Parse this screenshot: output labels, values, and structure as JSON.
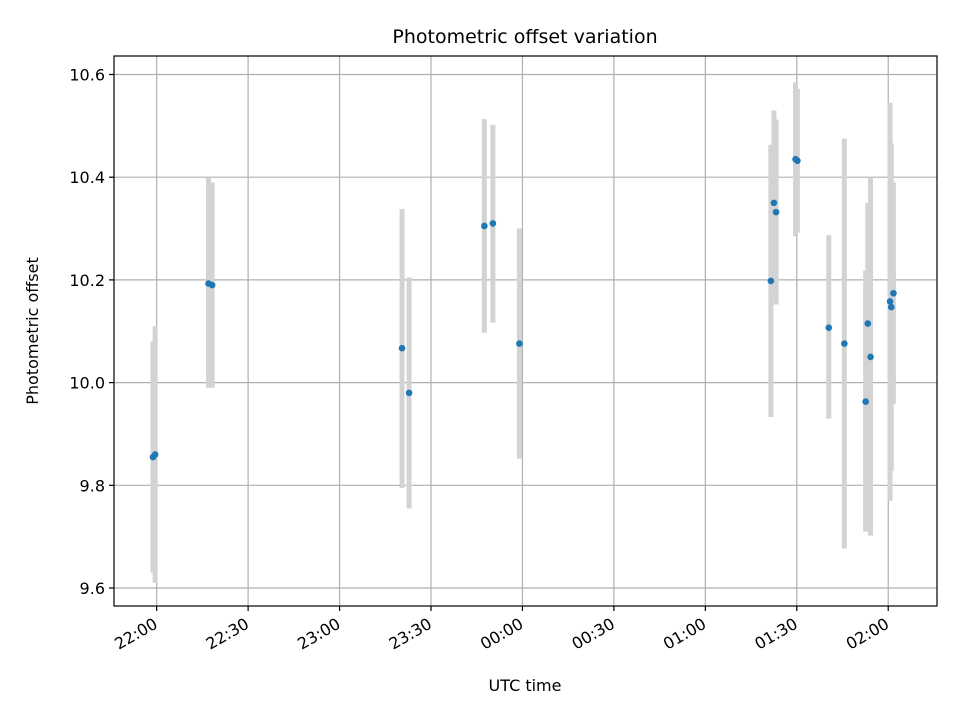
{
  "chart_data": {
    "type": "scatter",
    "title": "Photometric offset variation",
    "xlabel": "UTC time",
    "ylabel": "Photometric offset",
    "x_unit": "UTC time of day (times after midnight written past 24:00)",
    "xlim": [
      "21:46",
      "26:16"
    ],
    "ylim": [
      9.565,
      10.636
    ],
    "xticks": [
      "22:00",
      "22:30",
      "23:00",
      "23:30",
      "24:00",
      "24:30",
      "25:00",
      "25:30",
      "26:00"
    ],
    "xtick_labels": [
      "22:00",
      "22:30",
      "23:00",
      "23:30",
      "00:00",
      "00:30",
      "01:00",
      "01:30",
      "02:00"
    ],
    "yticks": [
      9.6,
      9.8,
      10.0,
      10.2,
      10.4,
      10.6
    ],
    "ytick_labels": [
      "9.6",
      "9.8",
      "10.0",
      "10.2",
      "10.4",
      "10.6"
    ],
    "grid": true,
    "colors": {
      "points": "#1f77b4",
      "errorbars": "#d3d3d3",
      "grid": "#b0b0b0"
    },
    "points": [
      {
        "x": "21:58.8",
        "y": 9.855,
        "low": 9.63,
        "high": 10.08
      },
      {
        "x": "21:59.5",
        "y": 9.86,
        "low": 9.61,
        "high": 10.11
      },
      {
        "x": "22:17.0",
        "y": 10.193,
        "low": 9.99,
        "high": 10.4
      },
      {
        "x": "22:18.2",
        "y": 10.19,
        "low": 9.99,
        "high": 10.39
      },
      {
        "x": "23:20.5",
        "y": 10.067,
        "low": 9.795,
        "high": 10.338
      },
      {
        "x": "23:22.8",
        "y": 9.98,
        "low": 9.755,
        "high": 10.205
      },
      {
        "x": "23:47.5",
        "y": 10.305,
        "low": 10.097,
        "high": 10.513
      },
      {
        "x": "23:50.3",
        "y": 10.31,
        "low": 10.117,
        "high": 10.502
      },
      {
        "x": "23:59.0",
        "y": 10.076,
        "low": 9.852,
        "high": 10.3
      },
      {
        "x": "25:21.5",
        "y": 10.198,
        "low": 9.933,
        "high": 10.463
      },
      {
        "x": "25:22.5",
        "y": 10.35,
        "low": 10.17,
        "high": 10.53
      },
      {
        "x": "25:23.2",
        "y": 10.332,
        "low": 10.152,
        "high": 10.512
      },
      {
        "x": "25:29.6",
        "y": 10.435,
        "low": 10.285,
        "high": 10.585
      },
      {
        "x": "25:30.2",
        "y": 10.432,
        "low": 10.292,
        "high": 10.572
      },
      {
        "x": "25:40.5",
        "y": 10.107,
        "low": 9.93,
        "high": 10.287
      },
      {
        "x": "25:45.6",
        "y": 10.076,
        "low": 9.677,
        "high": 10.475
      },
      {
        "x": "25:52.6",
        "y": 9.963,
        "low": 9.71,
        "high": 10.218
      },
      {
        "x": "25:53.3",
        "y": 10.115,
        "low": 9.71,
        "high": 10.35
      },
      {
        "x": "25:54.2",
        "y": 10.05,
        "low": 9.702,
        "high": 10.4
      },
      {
        "x": "26:00.6",
        "y": 10.158,
        "low": 9.77,
        "high": 10.545
      },
      {
        "x": "26:01.0",
        "y": 10.147,
        "low": 9.828,
        "high": 10.466
      },
      {
        "x": "26:01.7",
        "y": 10.174,
        "low": 9.958,
        "high": 10.39
      }
    ]
  }
}
